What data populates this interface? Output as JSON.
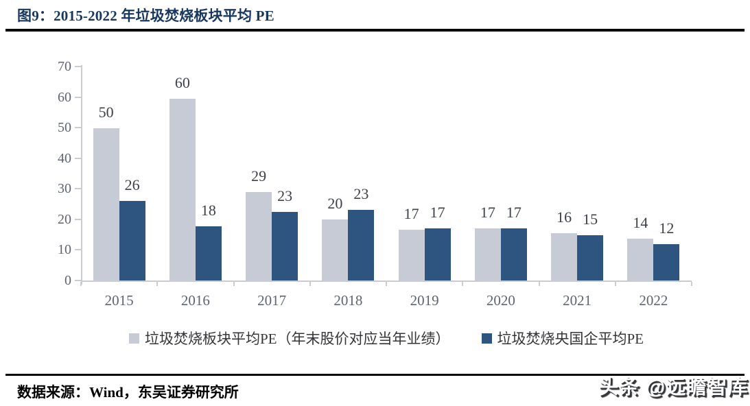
{
  "title": "图9：2015-2022 年垃圾焚烧板块平均 PE",
  "source": "数据来源：Wind，东吴证券研究所",
  "watermark": "头条 @远瞻智库",
  "colors": {
    "title": "#17375e",
    "rule": "#060606",
    "axis": "#c9cdd2",
    "tick_label": "#5d6470",
    "value_label": "#3c4048",
    "series_sector": "#c7cbd5",
    "series_soe": "#2e5480",
    "watermark_text": "#ffffff",
    "watermark_shadow": "#35373a"
  },
  "chart_data": {
    "type": "bar",
    "title": "图9：2015-2022 年垃圾焚烧板块平均 PE",
    "categories": [
      "2015",
      "2016",
      "2017",
      "2018",
      "2019",
      "2020",
      "2021",
      "2022"
    ],
    "series": [
      {
        "name": "垃圾焚烧板块平均PE（年末股价对应当年业绩）",
        "color": "#c7cbd5",
        "values": [
          50,
          60,
          29,
          20,
          17,
          17,
          16,
          14
        ],
        "drawn_values": [
          49.7,
          59.5,
          29,
          20,
          16.5,
          17,
          15.5,
          13.7
        ]
      },
      {
        "name": "垃圾焚烧央国企平均PE",
        "color": "#2e5480",
        "values": [
          26,
          18,
          23,
          23,
          17,
          17,
          15,
          12
        ],
        "drawn_values": [
          26,
          17.8,
          22.5,
          23,
          17,
          17,
          14.8,
          11.9
        ]
      }
    ],
    "xlabel": "",
    "ylabel": "",
    "ylim": [
      0,
      70
    ],
    "yticks": [
      0,
      10,
      20,
      30,
      40,
      50,
      60,
      70
    ],
    "grid": false,
    "legend_position": "bottom",
    "value_labels": true
  }
}
